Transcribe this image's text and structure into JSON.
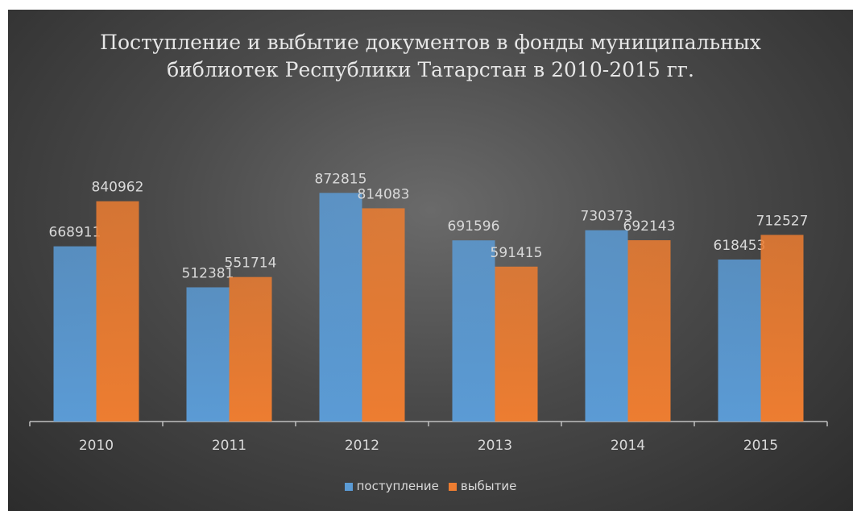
{
  "chart_data": {
    "type": "bar",
    "title": "Поступление  и выбытие документов в фонды муниципальных\nбиблиотек Республики Татарстан в 2010-2015 гг.",
    "categories": [
      "2010",
      "2011",
      "2012",
      "2013",
      "2014",
      "2015"
    ],
    "series": [
      {
        "name": "поступление",
        "color": "#5b9bd5",
        "values": [
          668911,
          512381,
          872815,
          691596,
          730373,
          618453
        ]
      },
      {
        "name": "выбытие",
        "color": "#ed7d31",
        "values": [
          840962,
          551714,
          814083,
          591415,
          692143,
          712527
        ]
      }
    ],
    "ylim": [
      0,
      900000
    ],
    "grid": false,
    "legend": "bottom",
    "xlabel": "",
    "ylabel": ""
  }
}
